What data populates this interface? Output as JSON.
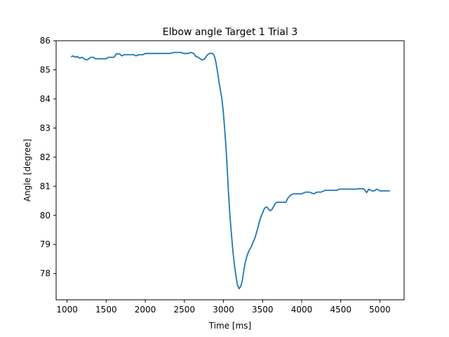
{
  "chart_data": {
    "type": "line",
    "title": "Elbow angle Target 1 Trial 3",
    "xlabel": "Time [ms]",
    "ylabel": "Angle [degree]",
    "xlim": [
      860,
      5310
    ],
    "ylim": [
      77.1,
      86.0
    ],
    "xticks": [
      1000,
      1500,
      2000,
      2500,
      3000,
      3500,
      4000,
      4500,
      5000
    ],
    "yticks": [
      78,
      79,
      80,
      81,
      82,
      83,
      84,
      85,
      86
    ],
    "grid": false,
    "legend": "none",
    "colors": {
      "line": "#1f77b4",
      "axes": "#000000",
      "background": "#ffffff"
    },
    "series": [
      {
        "values": [
          [
            1050,
            85.45
          ],
          [
            1080,
            85.48
          ],
          [
            1100,
            85.43
          ],
          [
            1130,
            85.46
          ],
          [
            1160,
            85.4
          ],
          [
            1190,
            85.43
          ],
          [
            1220,
            85.38
          ],
          [
            1250,
            85.34
          ],
          [
            1280,
            85.38
          ],
          [
            1300,
            85.43
          ],
          [
            1340,
            85.43
          ],
          [
            1360,
            85.38
          ],
          [
            1420,
            85.38
          ],
          [
            1450,
            85.38
          ],
          [
            1500,
            85.38
          ],
          [
            1530,
            85.43
          ],
          [
            1600,
            85.43
          ],
          [
            1630,
            85.55
          ],
          [
            1670,
            85.55
          ],
          [
            1700,
            85.48
          ],
          [
            1730,
            85.52
          ],
          [
            1800,
            85.52
          ],
          [
            1850,
            85.52
          ],
          [
            1880,
            85.48
          ],
          [
            1920,
            85.52
          ],
          [
            1970,
            85.52
          ],
          [
            2000,
            85.56
          ],
          [
            2050,
            85.56
          ],
          [
            2100,
            85.56
          ],
          [
            2200,
            85.56
          ],
          [
            2300,
            85.56
          ],
          [
            2380,
            85.6
          ],
          [
            2450,
            85.6
          ],
          [
            2500,
            85.56
          ],
          [
            2550,
            85.56
          ],
          [
            2580,
            85.6
          ],
          [
            2620,
            85.56
          ],
          [
            2650,
            85.45
          ],
          [
            2680,
            85.43
          ],
          [
            2700,
            85.38
          ],
          [
            2730,
            85.34
          ],
          [
            2760,
            85.38
          ],
          [
            2790,
            85.5
          ],
          [
            2820,
            85.56
          ],
          [
            2860,
            85.56
          ],
          [
            2880,
            85.5
          ],
          [
            2900,
            85.3
          ],
          [
            2920,
            85.0
          ],
          [
            2940,
            84.65
          ],
          [
            2960,
            84.3
          ],
          [
            2980,
            84.0
          ],
          [
            3000,
            83.5
          ],
          [
            3020,
            82.8
          ],
          [
            3040,
            82.0
          ],
          [
            3060,
            81.0
          ],
          [
            3080,
            80.1
          ],
          [
            3100,
            79.4
          ],
          [
            3120,
            78.8
          ],
          [
            3140,
            78.3
          ],
          [
            3160,
            77.9
          ],
          [
            3180,
            77.6
          ],
          [
            3200,
            77.48
          ],
          [
            3220,
            77.55
          ],
          [
            3240,
            77.75
          ],
          [
            3260,
            78.1
          ],
          [
            3280,
            78.4
          ],
          [
            3300,
            78.6
          ],
          [
            3320,
            78.75
          ],
          [
            3340,
            78.85
          ],
          [
            3360,
            78.95
          ],
          [
            3380,
            79.1
          ],
          [
            3400,
            79.2
          ],
          [
            3420,
            79.38
          ],
          [
            3440,
            79.58
          ],
          [
            3460,
            79.8
          ],
          [
            3480,
            79.95
          ],
          [
            3500,
            80.08
          ],
          [
            3520,
            80.22
          ],
          [
            3540,
            80.28
          ],
          [
            3560,
            80.28
          ],
          [
            3580,
            80.2
          ],
          [
            3600,
            80.16
          ],
          [
            3620,
            80.2
          ],
          [
            3640,
            80.3
          ],
          [
            3660,
            80.4
          ],
          [
            3680,
            80.45
          ],
          [
            3720,
            80.45
          ],
          [
            3760,
            80.45
          ],
          [
            3800,
            80.45
          ],
          [
            3820,
            80.58
          ],
          [
            3840,
            80.64
          ],
          [
            3860,
            80.7
          ],
          [
            3900,
            80.74
          ],
          [
            3950,
            80.74
          ],
          [
            4000,
            80.74
          ],
          [
            4050,
            80.8
          ],
          [
            4100,
            80.8
          ],
          [
            4150,
            80.74
          ],
          [
            4200,
            80.8
          ],
          [
            4250,
            80.8
          ],
          [
            4300,
            80.86
          ],
          [
            4350,
            80.86
          ],
          [
            4400,
            80.86
          ],
          [
            4450,
            80.86
          ],
          [
            4480,
            80.9
          ],
          [
            4550,
            80.9
          ],
          [
            4600,
            80.9
          ],
          [
            4650,
            80.9
          ],
          [
            4700,
            80.9
          ],
          [
            4750,
            80.92
          ],
          [
            4800,
            80.9
          ],
          [
            4830,
            80.78
          ],
          [
            4860,
            80.9
          ],
          [
            4900,
            80.84
          ],
          [
            4930,
            80.84
          ],
          [
            4960,
            80.9
          ],
          [
            5000,
            80.84
          ],
          [
            5050,
            80.84
          ],
          [
            5080,
            80.84
          ],
          [
            5130,
            80.84
          ]
        ]
      }
    ]
  }
}
